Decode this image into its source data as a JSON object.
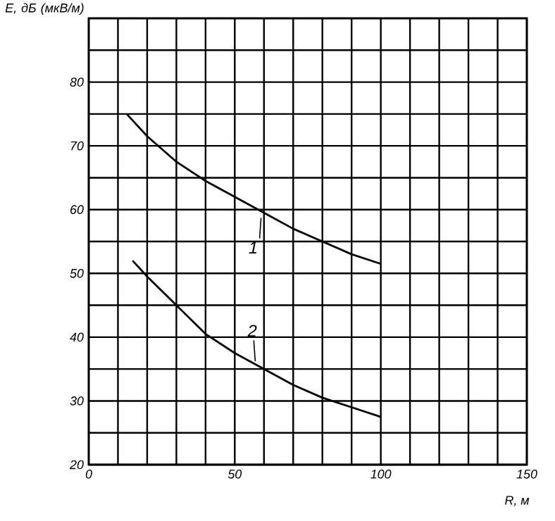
{
  "chart_data": {
    "type": "line",
    "xlabel": "R, м",
    "ylabel": "E, дБ (мкВ/м)",
    "xlim": [
      0,
      150
    ],
    "ylim": [
      20,
      90
    ],
    "xticks": [
      0,
      {
        "value": 10,
        "label": null
      },
      {
        "value": 20,
        "label": null
      },
      {
        "value": 30,
        "label": null
      },
      {
        "value": 40,
        "label": null
      },
      50,
      {
        "value": 60,
        "label": null
      },
      {
        "value": 70,
        "label": null
      },
      {
        "value": 80,
        "label": null
      },
      {
        "value": 90,
        "label": null
      },
      100,
      {
        "value": 110,
        "label": null
      },
      {
        "value": 120,
        "label": null
      },
      {
        "value": 130,
        "label": null
      },
      {
        "value": 140,
        "label": null
      },
      150
    ],
    "yticks": [
      20,
      {
        "value": 25,
        "label": null
      },
      30,
      {
        "value": 35,
        "label": null
      },
      40,
      {
        "value": 45,
        "label": null
      },
      50,
      {
        "value": 55,
        "label": null
      },
      60,
      {
        "value": 65,
        "label": null
      },
      70,
      {
        "value": 75,
        "label": null
      },
      80,
      {
        "value": 85,
        "label": null
      }
    ],
    "grid": true,
    "marker": "none",
    "line_style": "solid",
    "series": [
      {
        "name": "1",
        "color": "#000000",
        "x": [
          13,
          20,
          30,
          40,
          50,
          60,
          70,
          80,
          90,
          100
        ],
        "values": [
          75,
          71.5,
          67.5,
          64.5,
          62,
          59.5,
          57,
          55,
          53,
          51.5
        ]
      },
      {
        "name": "2",
        "color": "#000000",
        "x": [
          15,
          20,
          30,
          40,
          50,
          60,
          70,
          80,
          90,
          100
        ],
        "values": [
          52,
          49.5,
          45,
          40.5,
          37.5,
          35,
          32.5,
          30.5,
          29,
          27.5
        ]
      }
    ]
  }
}
